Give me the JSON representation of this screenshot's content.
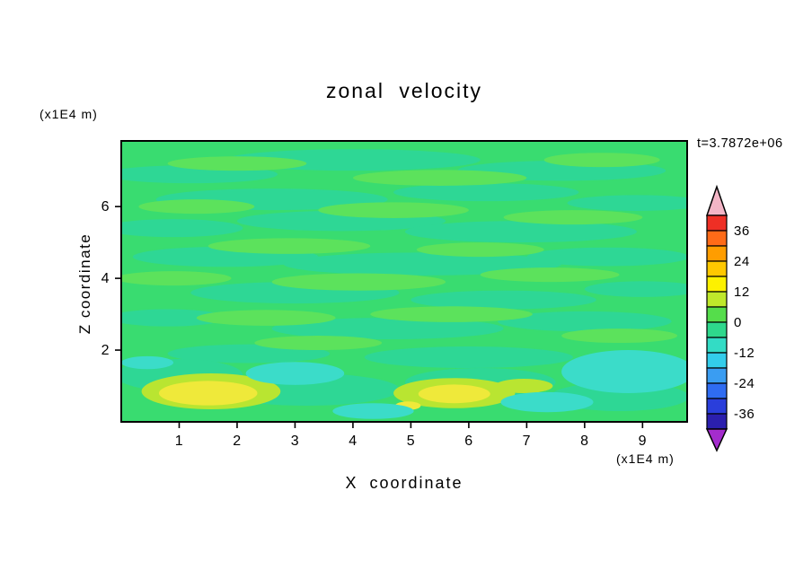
{
  "chart_data": {
    "type": "heatmap",
    "title": "zonal velocity",
    "time_label": "t=3.7872e+06",
    "xlabel": "X coordinate",
    "ylabel": "Z coordinate",
    "x_unit_label": "(x1E4 m)",
    "y_unit_label": "(x1E4 m)",
    "x_ticks": [
      1,
      2,
      3,
      4,
      5,
      6,
      7,
      8,
      9
    ],
    "y_ticks": [
      2,
      4,
      6
    ],
    "x_range": [
      0,
      9.77
    ],
    "y_range": [
      0,
      7.83
    ],
    "grid": false,
    "legend_position": "right-colorbar",
    "colorbar": {
      "tick_labels": [
        "36",
        "24",
        "12",
        "0",
        "-12",
        "-24",
        "-36"
      ],
      "tick_boundary_indices": [
        1,
        3,
        5,
        7,
        9,
        11,
        13
      ],
      "levels": [
        -42,
        -36,
        -30,
        -24,
        -18,
        -12,
        -6,
        0,
        6,
        12,
        18,
        24,
        30,
        36,
        42
      ],
      "segment_colors_top_to_bottom": [
        "#ee2f25",
        "#ff6b18",
        "#ff9d00",
        "#ffc800",
        "#fdf100",
        "#bfe82b",
        "#55dd4b",
        "#2ed88c",
        "#33dcc5",
        "#33cdeb",
        "#3a9df2",
        "#2f6cf2",
        "#2a3edb",
        "#2b1fae"
      ],
      "over_color": "#f3b5c6",
      "under_color": "#a42ccd"
    },
    "field": {
      "dominant_value_range": [
        -6,
        6
      ],
      "description": "mostly near-zero green field with horizontal streaks; weak negative (cyan) patches near bottom at x≈3, 4.3, 7.3, 8.8 and weak positive (yellow) patches near bottom at x≈1.5 and 5.7",
      "palette": {
        "base": "#39dc70",
        "teal": "#2ed795",
        "lightgreen": "#5ce25c",
        "cyan": "#3bdcc9",
        "yellow": "#efe93a",
        "yellowgreen": "#b9e531"
      },
      "region_format": [
        "cx",
        "cy",
        "rx",
        "ry",
        "color_key"
      ],
      "regions": [
        [
          1.2,
          6.9,
          1.5,
          0.25,
          "teal"
        ],
        [
          4.0,
          7.3,
          2.2,
          0.3,
          "teal"
        ],
        [
          7.6,
          7.0,
          1.8,
          0.28,
          "teal"
        ],
        [
          2.6,
          6.2,
          2.0,
          0.3,
          "teal"
        ],
        [
          6.3,
          6.4,
          1.6,
          0.25,
          "teal"
        ],
        [
          8.9,
          6.1,
          1.2,
          0.22,
          "teal"
        ],
        [
          0.9,
          5.4,
          1.2,
          0.25,
          "teal"
        ],
        [
          3.8,
          5.6,
          1.8,
          0.28,
          "teal"
        ],
        [
          6.9,
          5.3,
          2.0,
          0.3,
          "teal"
        ],
        [
          1.8,
          4.6,
          1.6,
          0.28,
          "teal"
        ],
        [
          5.2,
          4.4,
          2.4,
          0.32,
          "teal"
        ],
        [
          8.4,
          4.6,
          1.4,
          0.26,
          "teal"
        ],
        [
          3.0,
          3.6,
          1.8,
          0.3,
          "teal"
        ],
        [
          6.6,
          3.4,
          1.6,
          0.26,
          "teal"
        ],
        [
          0.8,
          2.9,
          1.0,
          0.24,
          "teal"
        ],
        [
          4.6,
          2.6,
          2.0,
          0.3,
          "teal"
        ],
        [
          8.0,
          2.8,
          1.5,
          0.28,
          "teal"
        ],
        [
          2.2,
          1.9,
          1.4,
          0.26,
          "teal"
        ],
        [
          6.0,
          1.8,
          1.8,
          0.3,
          "teal"
        ],
        [
          9.0,
          3.7,
          1.0,
          0.22,
          "teal"
        ],
        [
          2.0,
          7.2,
          1.2,
          0.2,
          "lightgreen"
        ],
        [
          5.5,
          6.8,
          1.5,
          0.22,
          "lightgreen"
        ],
        [
          8.3,
          7.3,
          1.0,
          0.2,
          "lightgreen"
        ],
        [
          1.3,
          6.0,
          1.0,
          0.2,
          "lightgreen"
        ],
        [
          4.7,
          5.9,
          1.3,
          0.22,
          "lightgreen"
        ],
        [
          7.8,
          5.7,
          1.2,
          0.2,
          "lightgreen"
        ],
        [
          2.9,
          4.9,
          1.4,
          0.22,
          "lightgreen"
        ],
        [
          6.2,
          4.8,
          1.1,
          0.2,
          "lightgreen"
        ],
        [
          0.9,
          4.0,
          1.0,
          0.2,
          "lightgreen"
        ],
        [
          4.1,
          3.9,
          1.5,
          0.24,
          "lightgreen"
        ],
        [
          7.4,
          4.1,
          1.2,
          0.2,
          "lightgreen"
        ],
        [
          2.5,
          2.9,
          1.2,
          0.22,
          "lightgreen"
        ],
        [
          5.7,
          3.0,
          1.4,
          0.22,
          "lightgreen"
        ],
        [
          8.6,
          2.4,
          1.0,
          0.2,
          "lightgreen"
        ],
        [
          3.4,
          2.2,
          1.1,
          0.2,
          "lightgreen"
        ],
        [
          1.0,
          1.3,
          1.1,
          0.45,
          "teal"
        ],
        [
          3.2,
          0.9,
          1.6,
          0.45,
          "teal"
        ],
        [
          6.2,
          1.1,
          1.3,
          0.4,
          "teal"
        ],
        [
          8.6,
          0.7,
          1.2,
          0.4,
          "teal"
        ],
        [
          1.55,
          0.85,
          1.2,
          0.5,
          "yellowgreen"
        ],
        [
          5.75,
          0.8,
          1.05,
          0.42,
          "yellowgreen"
        ],
        [
          6.95,
          1.0,
          0.5,
          0.2,
          "yellowgreen"
        ],
        [
          1.5,
          0.8,
          0.85,
          0.34,
          "yellow"
        ],
        [
          5.75,
          0.78,
          0.62,
          0.26,
          "yellow"
        ],
        [
          4.95,
          0.45,
          0.22,
          0.12,
          "yellow"
        ],
        [
          3.0,
          1.35,
          0.85,
          0.32,
          "cyan"
        ],
        [
          4.35,
          0.3,
          0.7,
          0.22,
          "cyan"
        ],
        [
          7.35,
          0.55,
          0.8,
          0.28,
          "cyan"
        ],
        [
          8.75,
          1.4,
          1.15,
          0.6,
          "cyan"
        ],
        [
          0.45,
          1.65,
          0.45,
          0.18,
          "cyan"
        ]
      ]
    }
  }
}
